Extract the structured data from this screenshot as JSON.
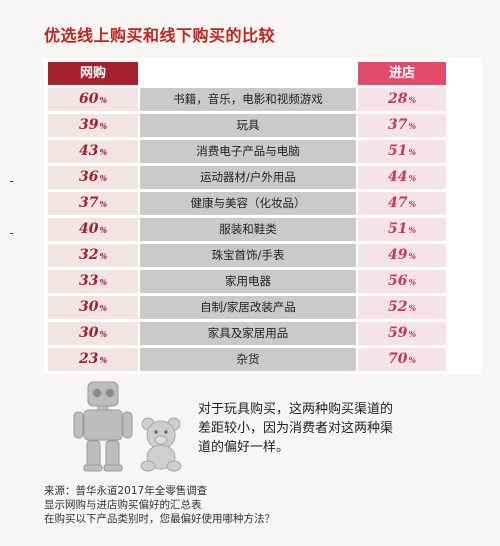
{
  "title": "优选线上购买和线下购买的比较",
  "header": {
    "online": "网购",
    "offline": "进店"
  },
  "chart_data": {
    "type": "table",
    "unit": "%",
    "columns": [
      "网购",
      "进店"
    ],
    "categories": [
      "书籍，音乐，电影和视频游戏",
      "玩具",
      "消费电子产品与电脑",
      "运动器材/户外用品",
      "健康与美容（化妆品）",
      "服装和鞋类",
      "珠宝首饰/手表",
      "家用电器",
      "自制/家居改装产品",
      "家具及家居用品",
      "杂货"
    ],
    "series": [
      {
        "name": "网购",
        "values": [
          60,
          39,
          43,
          36,
          37,
          40,
          32,
          33,
          30,
          30,
          23
        ]
      },
      {
        "name": "进店",
        "values": [
          28,
          37,
          51,
          44,
          47,
          51,
          49,
          56,
          52,
          59,
          70
        ]
      }
    ]
  },
  "note": "对于玩具购买，这两种购买渠道的差距较小，因为消费者对这两种渠道的偏好一样。",
  "footer": [
    "来源：普华永道2017年全零售调查",
    "显示网购与进店购买偏好的汇总表",
    "在购买以下产品类别时，您最偏好使用哪种方法？"
  ],
  "colors": {
    "accent": "#a3202c",
    "offline": "#e24c6a",
    "title": "#c2261f"
  }
}
